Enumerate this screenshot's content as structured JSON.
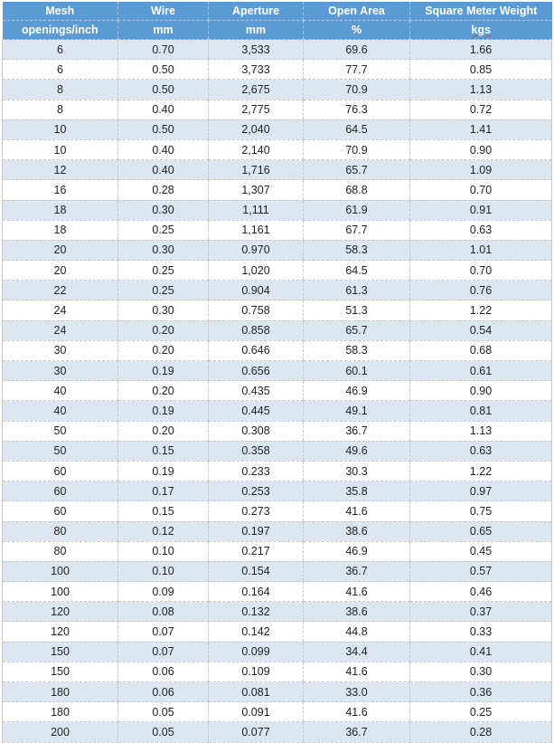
{
  "header": {
    "row1": [
      "Mesh",
      "Wire",
      "Aperture",
      "Open Area",
      "Square Meter Weight"
    ],
    "row2": [
      "openings/inch",
      "mm",
      "mm",
      "%",
      "kgs"
    ]
  },
  "rows": [
    [
      "6",
      "0.70",
      "3,533",
      "69.6",
      "1.66"
    ],
    [
      "6",
      "0.50",
      "3,733",
      "77.7",
      "0.85"
    ],
    [
      "8",
      "0.50",
      "2,675",
      "70.9",
      "1.13"
    ],
    [
      "8",
      "0.40",
      "2,775",
      "76.3",
      "0.72"
    ],
    [
      "10",
      "0.50",
      "2,040",
      "64.5",
      "1.41"
    ],
    [
      "10",
      "0.40",
      "2,140",
      "70.9",
      "0.90"
    ],
    [
      "12",
      "0.40",
      "1,716",
      "65.7",
      "1.09"
    ],
    [
      "16",
      "0.28",
      "1,307",
      "68.8",
      "0.70"
    ],
    [
      "18",
      "0.30",
      "1,111",
      "61.9",
      "0.91"
    ],
    [
      "18",
      "0.25",
      "1,161",
      "67.7",
      "0.63"
    ],
    [
      "20",
      "0.30",
      "0.970",
      "58.3",
      "1.01"
    ],
    [
      "20",
      "0.25",
      "1,020",
      "64.5",
      "0.70"
    ],
    [
      "22",
      "0.25",
      "0.904",
      "61.3",
      "0.76"
    ],
    [
      "24",
      "0.30",
      "0.758",
      "51.3",
      "1.22"
    ],
    [
      "24",
      "0.20",
      "0.858",
      "65.7",
      "0.54"
    ],
    [
      "30",
      "0.20",
      "0.646",
      "58.3",
      "0.68"
    ],
    [
      "30",
      "0.19",
      "0.656",
      "60.1",
      "0.61"
    ],
    [
      "40",
      "0.20",
      "0.435",
      "46.9",
      "0.90"
    ],
    [
      "40",
      "0.19",
      "0.445",
      "49.1",
      "0.81"
    ],
    [
      "50",
      "0.20",
      "0.308",
      "36.7",
      "1.13"
    ],
    [
      "50",
      "0.15",
      "0.358",
      "49.6",
      "0.63"
    ],
    [
      "60",
      "0.19",
      "0.233",
      "30.3",
      "1.22"
    ],
    [
      "60",
      "0.17",
      "0.253",
      "35.8",
      "0.97"
    ],
    [
      "60",
      "0.15",
      "0.273",
      "41.6",
      "0.75"
    ],
    [
      "80",
      "0.12",
      "0.197",
      "38.6",
      "0.65"
    ],
    [
      "80",
      "0.10",
      "0.217",
      "46.9",
      "0.45"
    ],
    [
      "100",
      "0.10",
      "0.154",
      "36.7",
      "0.57"
    ],
    [
      "100",
      "0.09",
      "0.164",
      "41.6",
      "0.46"
    ],
    [
      "120",
      "0.08",
      "0.132",
      "38.6",
      "0.37"
    ],
    [
      "120",
      "0.07",
      "0.142",
      "44.8",
      "0.33"
    ],
    [
      "150",
      "0.07",
      "0.099",
      "34.4",
      "0.41"
    ],
    [
      "150",
      "0.06",
      "0.109",
      "41.6",
      "0.30"
    ],
    [
      "180",
      "0.06",
      "0.081",
      "33.0",
      "0.36"
    ],
    [
      "180",
      "0.05",
      "0.091",
      "41.6",
      "0.25"
    ],
    [
      "200",
      "0.05",
      "0.077",
      "36.7",
      "0.28"
    ]
  ],
  "colors": {
    "header_bg": "#5b9bd5",
    "stripe_bg": "#dce6f1"
  }
}
